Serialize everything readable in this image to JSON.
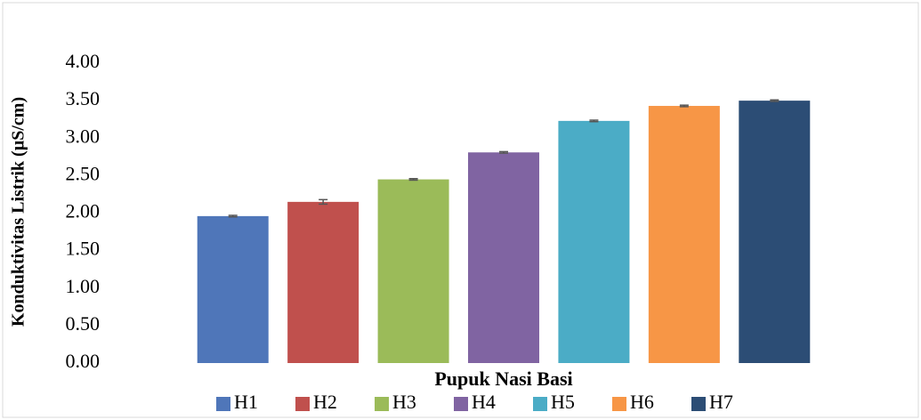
{
  "chart_data": {
    "type": "bar",
    "x_label": "Pupuk Nasi Basi",
    "y_label": "Konduktivitas Listrik (µS/cm)",
    "categories": [
      "H1",
      "H2",
      "H3",
      "H4",
      "H5",
      "H6",
      "H7"
    ],
    "values": [
      1.96,
      2.15,
      2.45,
      2.81,
      3.23,
      3.43,
      3.5
    ],
    "errors": [
      0.01,
      0.03,
      0.01,
      0.01,
      0.01,
      0.01,
      0.01
    ],
    "colors": [
      "#4f76b9",
      "#c0504d",
      "#9bbb59",
      "#8064a2",
      "#4bacc6",
      "#f79646",
      "#2c4d75"
    ],
    "ylim": [
      0,
      4
    ],
    "yticks": [
      {
        "value": 0,
        "label": "0.00"
      },
      {
        "value": 0.5,
        "label": "0.50"
      },
      {
        "value": 1,
        "label": "1.00"
      },
      {
        "value": 1.5,
        "label": "1.50"
      },
      {
        "value": 2,
        "label": "2.00"
      },
      {
        "value": 2.5,
        "label": "2.50"
      },
      {
        "value": 3,
        "label": "3.00"
      },
      {
        "value": 3.5,
        "label": "3.50"
      },
      {
        "value": 4,
        "label": "4.00"
      }
    ],
    "grid": false,
    "legend": "bottom"
  }
}
